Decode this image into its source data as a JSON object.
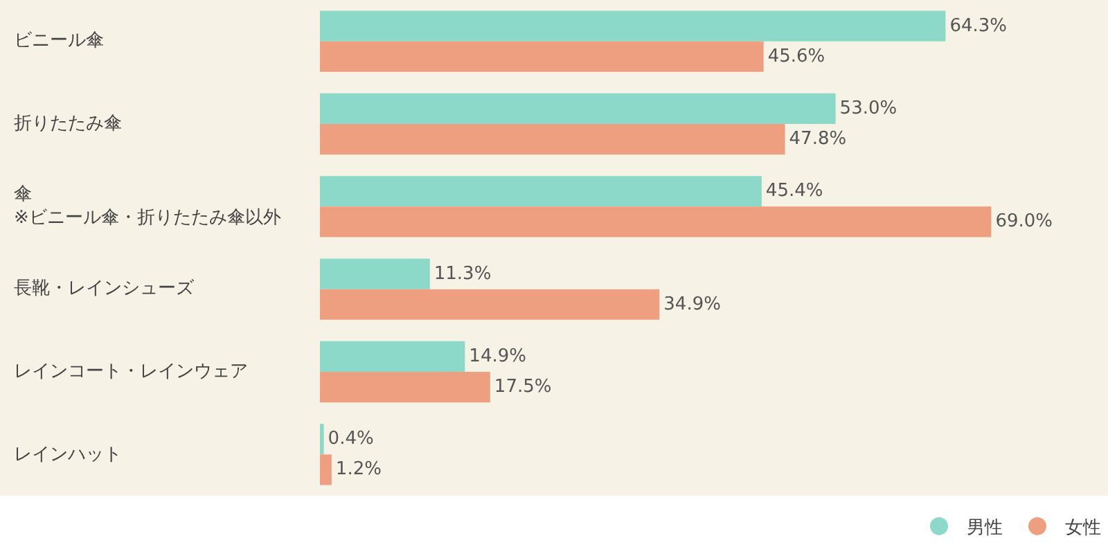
{
  "chart_data": {
    "type": "bar",
    "orientation": "horizontal",
    "categories": [
      "ビニール傘",
      "折りたたみ傘",
      "傘\n※ビニール傘・折りたたみ傘以外",
      "長靴・レインシューズ",
      "レインコート・レインウェア",
      "レインハット"
    ],
    "series": [
      {
        "name": "男性",
        "color": "#8dd9c9",
        "values": [
          64.3,
          53.0,
          45.4,
          11.3,
          14.9,
          0.4
        ],
        "value_labels": [
          "64.3%",
          "53.0%",
          "45.4%",
          "11.3%",
          "14.9%",
          "0.4%"
        ]
      },
      {
        "name": "女性",
        "color": "#ee9f80",
        "values": [
          45.6,
          47.8,
          69.0,
          34.9,
          17.5,
          1.2
        ],
        "value_labels": [
          "45.6%",
          "47.8%",
          "69.0%",
          "34.9%",
          "17.5%",
          "1.2%"
        ]
      }
    ],
    "xlim": [
      0,
      81
    ],
    "legend": "bottom right",
    "grid": false,
    "tick_labels": false
  }
}
